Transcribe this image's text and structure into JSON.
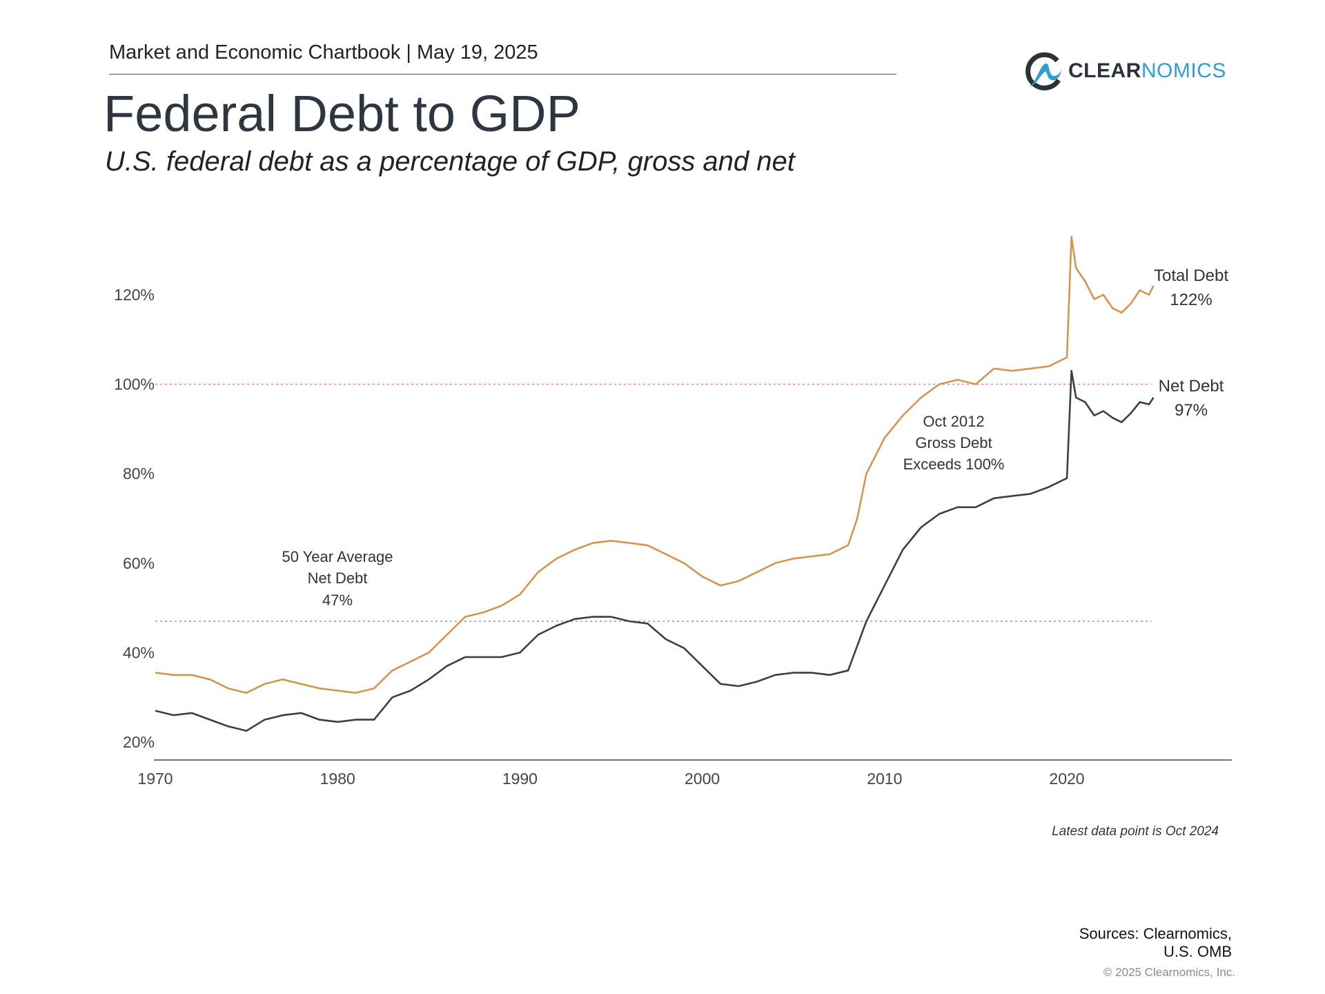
{
  "header": {
    "text": "Market and Economic Chartbook | May 19, 2025",
    "title": "Federal Debt to GDP",
    "subtitle": "U.S. federal debt as a percentage of GDP, gross and net"
  },
  "logo": {
    "part1": "CLEAR",
    "part2": "NOMICS",
    "colors": {
      "dark": "#2b323a",
      "blue": "#2f9fcf"
    }
  },
  "footer": {
    "note": "Latest data point is Oct 2024",
    "sources_line1": "Sources: Clearnomics,",
    "sources_line2": "U.S. OMB",
    "copyright": "© 2025 Clearnomics, Inc."
  },
  "chart_data": {
    "type": "line",
    "title": "Federal Debt to GDP",
    "xlabel": "",
    "ylabel": "",
    "xlim": [
      1970,
      2029
    ],
    "ylim": [
      18,
      132
    ],
    "x_ticks": [
      "1970",
      "1980",
      "1990",
      "2000",
      "2010",
      "2020"
    ],
    "y_ticks": [
      "20%",
      "40%",
      "60%",
      "80%",
      "100%",
      "120%"
    ],
    "y_tick_values": [
      20,
      40,
      60,
      80,
      100,
      120
    ],
    "grid": false,
    "reference_lines": [
      {
        "value": 100,
        "style": "dotted",
        "color": "#d48a8a"
      },
      {
        "value": 47,
        "style": "dotted",
        "color": "#8a9aa8"
      }
    ],
    "annotations": {
      "avg": [
        "50 Year Average",
        "Net Debt",
        "47%"
      ],
      "oct2012": [
        "Oct 2012",
        "Gross Debt",
        "Exceeds 100%"
      ]
    },
    "series": [
      {
        "name": "Total Debt",
        "end_label": "122%",
        "color": "#d4954e",
        "x": [
          1970,
          1971,
          1972,
          1973,
          1974,
          1975,
          1976,
          1977,
          1978,
          1979,
          1980,
          1981,
          1982,
          1983,
          1984,
          1985,
          1986,
          1987,
          1988,
          1989,
          1990,
          1991,
          1992,
          1993,
          1994,
          1995,
          1996,
          1997,
          1998,
          1999,
          2000,
          2001,
          2002,
          2003,
          2004,
          2005,
          2006,
          2007,
          2008,
          2008.5,
          2009,
          2010,
          2011,
          2012,
          2013,
          2014,
          2015,
          2016,
          2017,
          2018,
          2019,
          2020,
          2020.25,
          2020.5,
          2021,
          2021.5,
          2022,
          2022.5,
          2023,
          2023.5,
          2024,
          2024.5,
          2024.75
        ],
        "y": [
          35.5,
          35,
          35,
          34,
          32,
          31,
          33,
          34,
          33,
          32,
          31.5,
          31,
          32,
          36,
          38,
          40,
          44,
          48,
          49,
          50.5,
          53,
          58,
          61,
          63,
          64.5,
          65,
          64.5,
          64,
          62,
          60,
          57,
          55,
          56,
          58,
          60,
          61,
          61.5,
          62,
          64,
          70,
          80,
          88,
          93,
          97,
          100,
          101,
          100,
          103.5,
          103,
          103.5,
          104,
          106,
          133,
          126,
          123,
          119,
          120,
          117,
          116,
          118,
          121,
          120,
          122
        ]
      },
      {
        "name": "Net Debt",
        "end_label": "97%",
        "color": "#34414d",
        "x": [
          1970,
          1971,
          1972,
          1973,
          1974,
          1975,
          1976,
          1977,
          1978,
          1979,
          1980,
          1981,
          1982,
          1983,
          1984,
          1985,
          1986,
          1987,
          1988,
          1989,
          1990,
          1991,
          1992,
          1993,
          1994,
          1995,
          1996,
          1997,
          1998,
          1999,
          2000,
          2001,
          2002,
          2003,
          2004,
          2005,
          2006,
          2007,
          2008,
          2009,
          2010,
          2011,
          2012,
          2013,
          2014,
          2015,
          2016,
          2017,
          2018,
          2019,
          2020,
          2020.25,
          2020.5,
          2021,
          2021.5,
          2022,
          2022.5,
          2023,
          2023.5,
          2024,
          2024.5,
          2024.75
        ],
        "y": [
          27,
          26,
          26.5,
          25,
          23.5,
          22.5,
          25,
          26,
          26.5,
          25,
          24.5,
          25,
          25,
          30,
          31.5,
          34,
          37,
          39,
          39,
          39,
          40,
          44,
          46,
          47.5,
          48,
          48,
          47,
          46.5,
          43,
          41,
          37,
          33,
          32.5,
          33.5,
          35,
          35.5,
          35.5,
          35,
          36,
          47,
          55,
          63,
          68,
          71,
          72.5,
          72.5,
          74.5,
          75,
          75.5,
          77,
          79,
          103,
          97,
          96,
          93,
          94,
          92.5,
          91.5,
          93.5,
          96,
          95.5,
          97
        ]
      }
    ]
  }
}
